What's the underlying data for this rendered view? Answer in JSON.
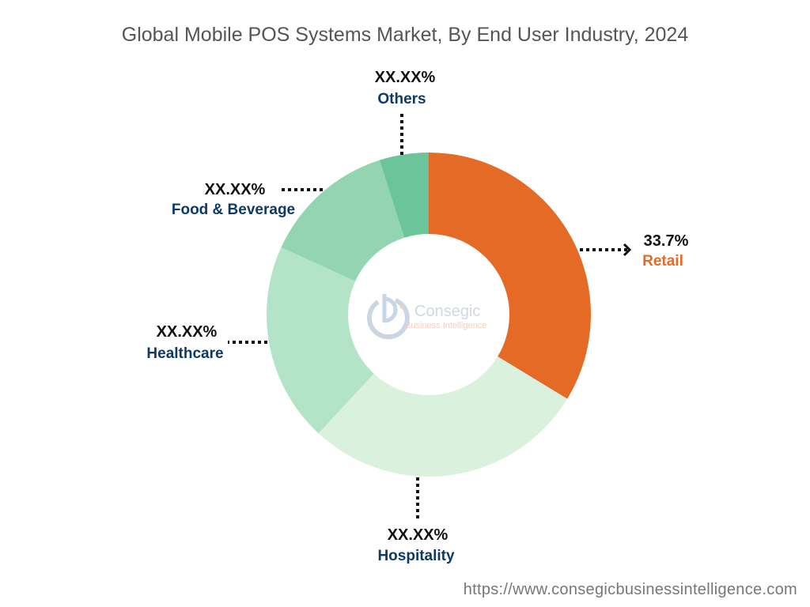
{
  "chart_data": {
    "type": "pie",
    "variant": "donut",
    "title": "Global Mobile POS Systems Market, By End User Industry, 2024",
    "slices": [
      {
        "name": "Retail",
        "value": 33.7,
        "label": "33.7%",
        "color": "#E46A25",
        "label_color": "#E46A25"
      },
      {
        "name": "Hospitality",
        "value": 28.2,
        "label": "XX.XX%",
        "color": "#DAF1DD",
        "label_color": "#0D3A66"
      },
      {
        "name": "Healthcare",
        "value": 19.9,
        "label": "XX.XX%",
        "color": "#B4E4C7",
        "label_color": "#0D3A66"
      },
      {
        "name": "Food & Beverage",
        "value": 13.3,
        "label": "XX.XX%",
        "color": "#93D5B0",
        "label_color": "#0D3A66"
      },
      {
        "name": "Others",
        "value": 4.9,
        "label": "XX.XX%",
        "color": "#6CC59A",
        "label_color": "#0D3A66"
      }
    ],
    "start_angle": "top, clockwise",
    "legend": "none"
  },
  "logo": {
    "name": "Consegic",
    "tagline": "Business Intelligence"
  },
  "footer": {
    "url": "https://www.consegicbusinessintelligence.com"
  }
}
